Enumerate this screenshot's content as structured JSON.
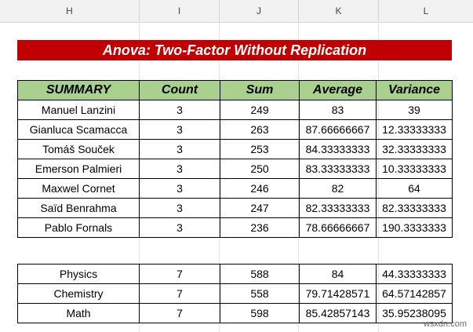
{
  "columns": [
    "H",
    "I",
    "J",
    "K",
    "L"
  ],
  "title": "Anova: Two-Factor Without Replication",
  "summary": {
    "headers": [
      "SUMMARY",
      "Count",
      "Sum",
      "Average",
      "Variance"
    ],
    "rows": [
      [
        "Manuel Lanzini",
        "3",
        "249",
        "83",
        "39"
      ],
      [
        "Gianluca Scamacca",
        "3",
        "263",
        "87.66666667",
        "12.33333333"
      ],
      [
        "Tomáš Souček",
        "3",
        "253",
        "84.33333333",
        "32.33333333"
      ],
      [
        "Emerson Palmieri",
        "3",
        "250",
        "83.33333333",
        "10.33333333"
      ],
      [
        "Maxwel Cornet",
        "3",
        "246",
        "82",
        "64"
      ],
      [
        "Saïd Benrahma",
        "3",
        "247",
        "82.33333333",
        "82.33333333"
      ],
      [
        "Pablo Fornals",
        "3",
        "236",
        "78.66666667",
        "190.3333333"
      ]
    ]
  },
  "subjects": {
    "rows": [
      [
        "Physics",
        "7",
        "588",
        "84",
        "44.33333333"
      ],
      [
        "Chemistry",
        "7",
        "558",
        "79.71428571",
        "64.57142857"
      ],
      [
        "Math",
        "7",
        "598",
        "85.42857143",
        "35.95238095"
      ]
    ]
  },
  "watermark": "wsxdn.com"
}
